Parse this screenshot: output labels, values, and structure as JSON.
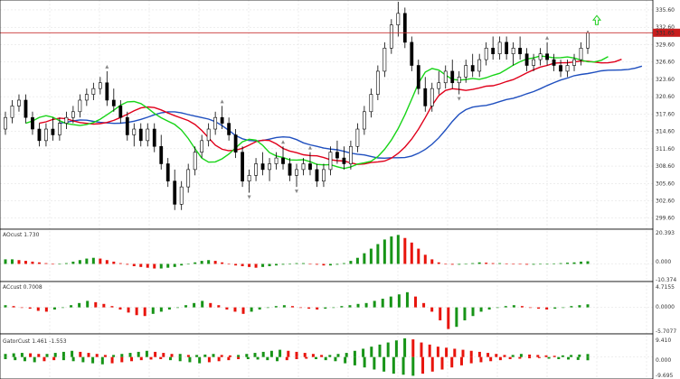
{
  "colors": {
    "background": "#ffffff",
    "grid": "#dcdcdc",
    "border": "#000000",
    "candle": "#000000",
    "jaw": "#1f4fbf",
    "teeth": "#e0001b",
    "lips": "#18d418",
    "up_bar": "#179417",
    "down_bar": "#e8140c",
    "price_line": "#c83232",
    "current_price_bg": "#c81e1e",
    "arrow_up": "#1fcf1f",
    "fractal": "#888888"
  },
  "main_panel": {
    "price_axis_labels": [
      "335.60",
      "332.60",
      "329.60",
      "326.60",
      "323.60",
      "320.60",
      "317.60",
      "314.60",
      "311.60",
      "308.60",
      "305.60",
      "302.60",
      "299.60"
    ],
    "current_price": "331.65",
    "indicators": [
      "Alligator jaw",
      "Alligator teeth",
      "Alligator lips",
      "Fractals"
    ]
  },
  "panels": [
    {
      "id": "ao",
      "title": "AOcust 1.730",
      "axis_labels": [
        "20.393",
        "0.000",
        "-10.374"
      ]
    },
    {
      "id": "ac",
      "title": "ACcust 0.7008",
      "axis_labels": [
        "4.7155",
        "0.0000",
        "-5.7077"
      ]
    },
    {
      "id": "gator",
      "title": "GatorCust 1.461 -1.553",
      "axis_labels": [
        "9.410",
        "0.000",
        "-9.695"
      ]
    }
  ],
  "chart_data": [
    {
      "type": "candlestick",
      "title": "",
      "ylim": [
        298.0,
        337.0
      ],
      "ticks": [
        335.6,
        332.6,
        329.6,
        326.6,
        323.6,
        320.6,
        317.6,
        314.6,
        311.6,
        308.6,
        305.6,
        302.6,
        299.6
      ],
      "current_price": 331.65,
      "candles_approx": [
        [
          315.0,
          318.0,
          314.0,
          317.0
        ],
        [
          317.0,
          320.0,
          316.0,
          319.0
        ],
        [
          319.0,
          321.0,
          318.0,
          320.0
        ],
        [
          320.0,
          321.0,
          316.0,
          317.0
        ],
        [
          317.0,
          318.0,
          314.0,
          315.0
        ],
        [
          315.0,
          316.0,
          312.0,
          313.0
        ],
        [
          313.0,
          316.0,
          312.0,
          315.0
        ],
        [
          315.0,
          317.0,
          313.0,
          314.0
        ],
        [
          314.0,
          317.0,
          313.0,
          316.0
        ],
        [
          316.0,
          318.0,
          315.0,
          317.0
        ],
        [
          317.0,
          319.0,
          316.0,
          318.0
        ],
        [
          318.0,
          321.0,
          317.0,
          320.0
        ],
        [
          320.0,
          322.0,
          319.0,
          321.0
        ],
        [
          321.0,
          323.0,
          320.0,
          322.0
        ],
        [
          322.0,
          324.0,
          321.0,
          323.0
        ],
        [
          323.0,
          325.0,
          319.0,
          320.0
        ],
        [
          320.0,
          322.0,
          318.0,
          319.0
        ],
        [
          319.0,
          320.0,
          316.0,
          317.0
        ],
        [
          317.0,
          318.0,
          313.0,
          314.0
        ],
        [
          314.0,
          316.0,
          312.0,
          315.0
        ],
        [
          315.0,
          316.0,
          312.0,
          313.0
        ],
        [
          313.0,
          316.0,
          312.0,
          315.0
        ],
        [
          315.0,
          316.0,
          311.0,
          312.0
        ],
        [
          312.0,
          314.0,
          308.0,
          309.0
        ],
        [
          309.0,
          310.0,
          305.0,
          306.0
        ],
        [
          306.0,
          308.0,
          301.0,
          302.0
        ],
        [
          302.0,
          306.0,
          301.0,
          305.0
        ],
        [
          305.0,
          309.0,
          304.0,
          308.0
        ],
        [
          308.0,
          312.0,
          307.0,
          311.0
        ],
        [
          311.0,
          314.0,
          310.0,
          313.0
        ],
        [
          313.0,
          316.0,
          312.0,
          315.0
        ],
        [
          315.0,
          318.0,
          314.0,
          317.0
        ],
        [
          317.0,
          319.0,
          315.0,
          316.0
        ],
        [
          316.0,
          317.0,
          313.0,
          314.0
        ],
        [
          314.0,
          315.0,
          310.0,
          311.0
        ],
        [
          311.0,
          312.0,
          305.0,
          306.0
        ],
        [
          306.0,
          308.0,
          304.0,
          307.0
        ],
        [
          307.0,
          310.0,
          306.0,
          309.0
        ],
        [
          309.0,
          311.0,
          307.0,
          308.0
        ],
        [
          308.0,
          310.0,
          306.0,
          309.0
        ],
        [
          309.0,
          311.0,
          308.0,
          310.0
        ],
        [
          310.0,
          312.0,
          308.0,
          309.0
        ],
        [
          309.0,
          310.0,
          306.0,
          307.0
        ],
        [
          307.0,
          309.0,
          305.0,
          308.0
        ],
        [
          308.0,
          310.0,
          307.0,
          309.0
        ],
        [
          309.0,
          311.0,
          307.0,
          308.0
        ],
        [
          308.0,
          309.0,
          305.0,
          306.0
        ],
        [
          306.0,
          309.0,
          305.0,
          308.0
        ],
        [
          308.0,
          312.0,
          307.0,
          311.0
        ],
        [
          311.0,
          313.0,
          309.0,
          310.0
        ],
        [
          310.0,
          312.0,
          308.0,
          309.0
        ],
        [
          309.0,
          313.0,
          308.0,
          312.0
        ],
        [
          312.0,
          316.0,
          311.0,
          315.0
        ],
        [
          315.0,
          319.0,
          314.0,
          318.0
        ],
        [
          318.0,
          322.0,
          317.0,
          321.0
        ],
        [
          321.0,
          326.0,
          320.0,
          325.0
        ],
        [
          325.0,
          330.0,
          324.0,
          329.0
        ],
        [
          329.0,
          334.0,
          328.0,
          333.0
        ],
        [
          333.0,
          337.0,
          331.0,
          335.0
        ],
        [
          335.0,
          336.0,
          329.0,
          330.0
        ],
        [
          330.0,
          331.0,
          325.0,
          326.0
        ],
        [
          326.0,
          327.0,
          321.0,
          322.0
        ],
        [
          322.0,
          324.0,
          318.0,
          319.0
        ],
        [
          319.0,
          323.0,
          318.0,
          322.0
        ],
        [
          322.0,
          325.0,
          321.0,
          323.0
        ],
        [
          323.0,
          326.0,
          322.0,
          325.0
        ],
        [
          325.0,
          327.0,
          322.0,
          323.0
        ],
        [
          323.0,
          325.0,
          321.0,
          324.0
        ],
        [
          324.0,
          327.0,
          323.0,
          326.0
        ],
        [
          326.0,
          328.0,
          324.0,
          325.0
        ],
        [
          325.0,
          328.0,
          324.0,
          327.0
        ],
        [
          327.0,
          330.0,
          326.0,
          329.0
        ],
        [
          329.0,
          331.0,
          327.0,
          328.0
        ],
        [
          328.0,
          331.0,
          327.0,
          330.0
        ],
        [
          330.0,
          331.0,
          327.0,
          328.0
        ],
        [
          328.0,
          330.0,
          326.0,
          329.0
        ],
        [
          329.0,
          331.0,
          327.0,
          328.0
        ],
        [
          328.0,
          329.0,
          325.0,
          326.0
        ],
        [
          326.0,
          328.0,
          325.0,
          327.0
        ],
        [
          327.0,
          329.0,
          326.0,
          328.0
        ],
        [
          328.0,
          330.0,
          326.0,
          327.0
        ],
        [
          327.0,
          328.0,
          325.0,
          326.0
        ],
        [
          326.0,
          327.0,
          324.0,
          325.0
        ],
        [
          325.0,
          327.0,
          324.0,
          326.0
        ],
        [
          326.0,
          328.0,
          325.0,
          327.0
        ],
        [
          327.0,
          330.0,
          326.0,
          329.0
        ],
        [
          329.0,
          332.0,
          328.0,
          331.65
        ]
      ]
    },
    {
      "type": "bar",
      "title": "AOcust 1.730",
      "ylim": [
        -10.374,
        20.393
      ],
      "values_approx": [
        3,
        3,
        2.5,
        2,
        1.5,
        1,
        0.5,
        0,
        0,
        0.5,
        1.5,
        2.5,
        3.5,
        4,
        3.5,
        2.5,
        1.5,
        0.5,
        -0.5,
        -1.5,
        -2,
        -2.5,
        -3,
        -3,
        -2.5,
        -2,
        -1,
        0,
        1,
        2,
        2.5,
        2,
        1,
        0,
        -1,
        -1.5,
        -2,
        -2.5,
        -2,
        -1.5,
        -1,
        -0.5,
        0,
        0.5,
        0.5,
        0,
        -0.5,
        -1,
        -1,
        -0.5,
        0.5,
        2,
        4,
        7,
        10,
        13,
        16,
        18,
        19,
        17,
        14,
        10,
        6,
        3,
        1,
        0,
        -0.5,
        -0.5,
        0,
        0.5,
        1,
        0.8,
        0.5,
        0.5,
        0.3,
        0,
        -0.3,
        -0.5,
        -0.5,
        -0.3,
        0,
        0.3,
        0.5,
        0.8,
        1,
        1.5,
        1.73
      ]
    },
    {
      "type": "bar",
      "title": "ACcust 0.7008",
      "ylim": [
        -5.7077,
        4.7155
      ],
      "values_approx": [
        0.5,
        0.3,
        0,
        -0.3,
        -0.8,
        -1,
        -0.5,
        0,
        0.5,
        1,
        1.5,
        1.2,
        0.8,
        0.3,
        -0.5,
        -1.2,
        -1.8,
        -2,
        -1.5,
        -1,
        -0.5,
        0,
        0.5,
        1,
        1.5,
        1,
        0.5,
        -0.5,
        -1,
        -1.5,
        -1,
        -0.5,
        0,
        0.3,
        0.5,
        0.3,
        0,
        -0.3,
        -0.5,
        -0.3,
        0,
        0.3,
        0.5,
        0.8,
        1,
        1.5,
        2,
        2.5,
        3,
        3.5,
        2.5,
        1,
        -1,
        -3,
        -5,
        -4.5,
        -3,
        -2,
        -1,
        -0.5,
        0,
        0.3,
        0.5,
        0.3,
        0,
        -0.3,
        -0.5,
        -0.3,
        0,
        0.3,
        0.5,
        0.7
      ]
    },
    {
      "type": "bar",
      "title": "GatorCust 1.461 -1.553",
      "ylim": [
        -9.695,
        9.41
      ],
      "upper_approx": [
        1.5,
        1.8,
        2,
        1.8,
        1.5,
        1.5,
        2,
        2.5,
        3,
        2.5,
        2,
        1.5,
        1,
        1,
        1.5,
        2,
        2.5,
        3,
        2.5,
        2,
        1.5,
        1.5,
        1,
        1,
        1.2,
        1.5,
        1,
        0.8,
        1,
        1.5,
        2,
        2.5,
        3,
        3.5,
        3,
        2.5,
        2,
        1.5,
        1,
        1,
        1.5,
        2,
        3,
        4,
        5,
        6,
        7,
        8,
        9,
        8.5,
        7,
        6,
        5,
        4.5,
        4,
        3.5,
        3,
        2.5,
        2,
        1.5,
        1,
        1,
        1.5,
        1.2,
        1,
        0.8,
        0.6,
        0.8,
        1,
        1.2,
        1.461
      ],
      "lower_approx": [
        -1,
        -1.5,
        -2,
        -2.5,
        -2,
        -1.5,
        -1.5,
        -2,
        -2.5,
        -3,
        -3.5,
        -3,
        -2.5,
        -2,
        -1.5,
        -1.2,
        -1,
        -1.5,
        -2,
        -2.5,
        -3,
        -2.5,
        -2,
        -1.5,
        -1,
        -1,
        -1.2,
        -1.5,
        -2,
        -1.5,
        -1,
        -0.8,
        -1,
        -1.5,
        -2,
        -3,
        -4,
        -5,
        -6,
        -7,
        -8,
        -8.5,
        -9,
        -8,
        -7,
        -6,
        -5,
        -4,
        -3,
        -2.5,
        -2,
        -1.5,
        -1,
        -0.8,
        -0.6,
        -0.5,
        -0.8,
        -1,
        -1.2,
        -1.4,
        -1.553
      ]
    }
  ]
}
